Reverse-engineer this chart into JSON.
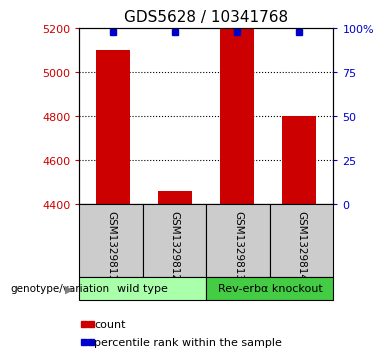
{
  "title": "GDS5628 / 10341768",
  "samples": [
    "GSM1329811",
    "GSM1329812",
    "GSM1329813",
    "GSM1329814"
  ],
  "counts": [
    5100,
    4460,
    5200,
    4800
  ],
  "percentiles": [
    99,
    99,
    99,
    99
  ],
  "ylim_left": [
    4400,
    5200
  ],
  "ylim_right": [
    0,
    100
  ],
  "yticks_left": [
    4400,
    4600,
    4800,
    5000,
    5200
  ],
  "yticks_right": [
    0,
    25,
    50,
    75,
    100
  ],
  "ytick_labels_right": [
    "0",
    "25",
    "50",
    "75",
    "100%"
  ],
  "bar_color": "#cc0000",
  "dot_color": "#0000cc",
  "groups": [
    {
      "label": "wild type",
      "indices": [
        0,
        1
      ],
      "color": "#aaffaa"
    },
    {
      "label": "Rev-erbα knockout",
      "indices": [
        2,
        3
      ],
      "color": "#44cc44"
    }
  ],
  "genotype_label": "genotype/variation",
  "legend_count_label": "count",
  "legend_pct_label": "percentile rank within the sample",
  "bar_width": 0.55,
  "sample_box_color": "#cccccc",
  "title_fontsize": 11,
  "tick_fontsize": 8,
  "sample_fontsize": 7.5,
  "group_fontsize": 8,
  "legend_fontsize": 8
}
